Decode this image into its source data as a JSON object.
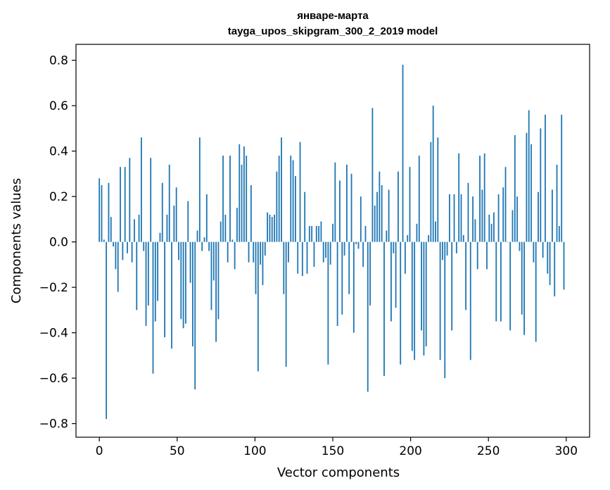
{
  "chart_data": {
    "type": "bar",
    "title_line1": "январе-марта",
    "title_line2": "tayga_upos_skipgram_300_2_2019 model",
    "xlabel": "Vector components",
    "ylabel": "Components values",
    "xlim": [
      -15,
      315
    ],
    "ylim": [
      -0.86,
      0.87
    ],
    "xticks": [
      0,
      50,
      100,
      150,
      200,
      250,
      300
    ],
    "yticks": [
      -0.8,
      -0.6,
      -0.4,
      -0.2,
      0.0,
      0.2,
      0.4,
      0.6,
      0.8
    ],
    "ytick_labels": [
      "−0.8",
      "−0.6",
      "−0.4",
      "−0.2",
      "0.0",
      "0.2",
      "0.4",
      "0.6",
      "0.8"
    ],
    "bar_color": "#1f77b4",
    "grid": false,
    "values": [
      0.28,
      0.25,
      0.01,
      -0.78,
      0.26,
      0.11,
      -0.02,
      -0.12,
      -0.22,
      0.33,
      -0.08,
      0.33,
      -0.05,
      0.37,
      -0.09,
      0.1,
      -0.3,
      0.12,
      0.46,
      -0.04,
      -0.37,
      -0.28,
      0.37,
      -0.58,
      -0.35,
      -0.26,
      0.04,
      0.26,
      -0.42,
      0.12,
      0.34,
      -0.47,
      0.16,
      0.24,
      -0.08,
      -0.34,
      -0.38,
      -0.36,
      0.18,
      -0.18,
      -0.46,
      -0.65,
      0.05,
      0.46,
      -0.04,
      0.02,
      0.21,
      -0.04,
      -0.3,
      -0.17,
      -0.44,
      -0.34,
      0.09,
      0.38,
      0.12,
      -0.09,
      0.38,
      0.01,
      -0.12,
      0.15,
      0.43,
      0.34,
      0.42,
      0.38,
      -0.09,
      0.25,
      -0.09,
      -0.23,
      -0.57,
      -0.1,
      -0.19,
      -0.06,
      0.13,
      0.12,
      0.11,
      0.12,
      0.31,
      0.38,
      0.46,
      -0.23,
      -0.55,
      -0.09,
      0.38,
      0.36,
      0.29,
      -0.14,
      0.44,
      -0.15,
      0.22,
      -0.14,
      0.07,
      0.07,
      -0.11,
      0.07,
      0.07,
      0.09,
      -0.09,
      -0.07,
      -0.54,
      -0.1,
      0.08,
      0.35,
      -0.37,
      0.27,
      -0.32,
      -0.06,
      0.34,
      -0.23,
      0.3,
      -0.4,
      -0.01,
      -0.03,
      0.2,
      -0.11,
      0.07,
      -0.66,
      -0.28,
      0.59,
      0.16,
      0.22,
      0.31,
      0.25,
      -0.59,
      0.05,
      0.23,
      -0.35,
      -0.05,
      -0.29,
      0.31,
      -0.54,
      0.78,
      -0.14,
      0.03,
      0.33,
      -0.48,
      -0.52,
      0.08,
      0.38,
      -0.39,
      -0.5,
      -0.46,
      0.03,
      0.44,
      0.6,
      0.09,
      0.46,
      -0.52,
      -0.08,
      -0.6,
      -0.06,
      0.21,
      -0.39,
      0.21,
      -0.05,
      0.39,
      0.21,
      0.03,
      -0.3,
      0.26,
      -0.52,
      0.2,
      0.1,
      -0.12,
      0.38,
      0.23,
      0.39,
      -0.12,
      0.12,
      0.08,
      0.13,
      -0.35,
      0.21,
      -0.35,
      0.24,
      0.33,
      0.0,
      -0.39,
      0.14,
      0.47,
      0.2,
      -0.04,
      -0.32,
      -0.41,
      0.48,
      0.58,
      0.43,
      -0.09,
      -0.44,
      0.22,
      0.5,
      -0.07,
      0.56,
      -0.14,
      -0.19,
      0.23,
      -0.24,
      0.34,
      0.07,
      0.56,
      -0.21
    ]
  }
}
